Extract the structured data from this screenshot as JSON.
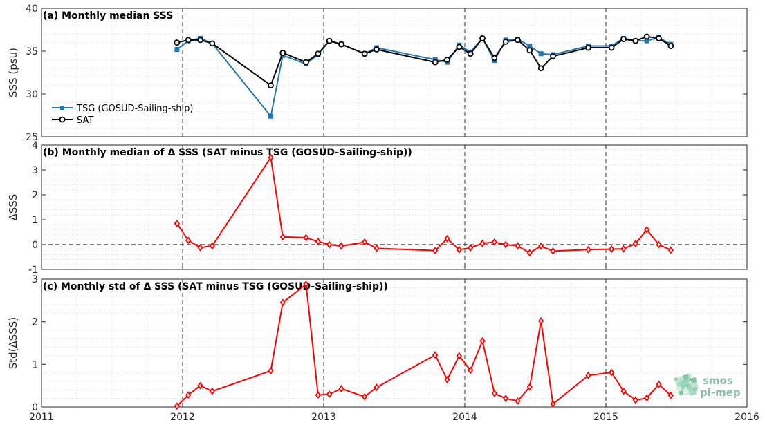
{
  "colors": {
    "tsg": "#1f77b4",
    "sat": "#000000",
    "delta": "#ff0000",
    "grid_minor": "#d9d9d9",
    "zero_line": "#000000"
  },
  "x_axis": {
    "range": [
      2011,
      2016
    ],
    "major_ticks": [
      2011,
      2012,
      2013,
      2014,
      2015,
      2016
    ],
    "tick_labels": [
      "2011",
      "2012",
      "2013",
      "2014",
      "2015",
      "2016"
    ],
    "year_dashes": [
      2012,
      2013,
      2014,
      2015
    ]
  },
  "logo": {
    "line1": "smos",
    "line2": "pi-mep"
  },
  "chart_data": [
    {
      "type": "line",
      "id": "a",
      "title": "(a) Monthly median SSS",
      "ylabel": "SSS (psu)",
      "ylim": [
        25,
        40
      ],
      "yticks": [
        25,
        30,
        35,
        40
      ],
      "grid": "minor-dotted",
      "legend_position": "left",
      "series": [
        {
          "name": "TSG (GOSUD-Sailing-ship)",
          "marker": "square",
          "x": [
            2011.96,
            2012.04,
            2012.125,
            2012.21,
            2012.625,
            2012.71,
            2012.875,
            2012.96,
            2013.04,
            2013.125,
            2013.29,
            2013.375,
            2013.79,
            2013.875,
            2013.96,
            2014.04,
            2014.125,
            2014.21,
            2014.29,
            2014.375,
            2014.46,
            2014.54,
            2014.625,
            2014.875,
            2015.04,
            2015.125,
            2015.21,
            2015.29,
            2015.375,
            2015.46
          ],
          "y": [
            35.2,
            36.2,
            36.5,
            35.9,
            27.4,
            34.5,
            33.5,
            34.6,
            36.2,
            35.8,
            34.7,
            35.4,
            34.0,
            33.7,
            35.7,
            34.9,
            36.5,
            33.9,
            36.3,
            36.4,
            35.6,
            34.7,
            34.6,
            35.6,
            35.6,
            36.5,
            36.2,
            36.2,
            36.6,
            35.8
          ]
        },
        {
          "name": "SAT",
          "marker": "circle",
          "x": [
            2011.96,
            2012.04,
            2012.125,
            2012.21,
            2012.625,
            2012.71,
            2012.875,
            2012.96,
            2013.04,
            2013.125,
            2013.29,
            2013.375,
            2013.79,
            2013.875,
            2013.96,
            2014.04,
            2014.125,
            2014.21,
            2014.29,
            2014.375,
            2014.46,
            2014.54,
            2014.625,
            2014.875,
            2015.04,
            2015.125,
            2015.21,
            2015.29,
            2015.375,
            2015.46
          ],
          "y": [
            36.0,
            36.3,
            36.3,
            35.9,
            31.0,
            34.8,
            33.7,
            34.7,
            36.2,
            35.8,
            34.7,
            35.2,
            33.7,
            34.0,
            35.5,
            34.7,
            36.5,
            34.2,
            36.1,
            36.3,
            35.1,
            33.0,
            34.4,
            35.4,
            35.4,
            36.4,
            36.2,
            36.7,
            36.5,
            35.6
          ]
        }
      ]
    },
    {
      "type": "line",
      "id": "b",
      "title": "(b) Monthly median of Δ SSS (SAT minus TSG (GOSUD-Sailing-ship))",
      "ylabel": "ΔSSS",
      "ylim": [
        -1,
        4
      ],
      "yticks": [
        -1,
        0,
        1,
        2,
        3,
        4
      ],
      "zero_line": true,
      "grid": "minor-dotted",
      "series": [
        {
          "marker": "diamond",
          "x": [
            2011.96,
            2012.04,
            2012.125,
            2012.21,
            2012.625,
            2012.71,
            2012.875,
            2012.96,
            2013.04,
            2013.125,
            2013.29,
            2013.375,
            2013.79,
            2013.875,
            2013.96,
            2014.04,
            2014.125,
            2014.21,
            2014.29,
            2014.375,
            2014.46,
            2014.54,
            2014.625,
            2014.875,
            2015.04,
            2015.125,
            2015.21,
            2015.29,
            2015.375,
            2015.46
          ],
          "y": [
            0.85,
            0.17,
            -0.12,
            -0.05,
            3.5,
            0.31,
            0.28,
            0.12,
            0.0,
            -0.06,
            0.1,
            -0.15,
            -0.24,
            0.24,
            -0.2,
            -0.13,
            0.05,
            0.1,
            0.0,
            -0.05,
            -0.33,
            -0.06,
            -0.26,
            -0.2,
            -0.18,
            -0.17,
            0.04,
            0.6,
            0.0,
            -0.22
          ]
        }
      ]
    },
    {
      "type": "line",
      "id": "c",
      "title": "(c) Monthly std of Δ SSS (SAT minus TSG (GOSUD-Sailing-ship))",
      "ylabel": "Std(ΔSSS)",
      "ylim": [
        0,
        3
      ],
      "yticks": [
        0,
        1,
        2,
        3
      ],
      "grid": "minor-dotted",
      "series": [
        {
          "marker": "diamond",
          "x": [
            2011.96,
            2012.04,
            2012.125,
            2012.21,
            2012.625,
            2012.71,
            2012.875,
            2012.96,
            2013.04,
            2013.125,
            2013.29,
            2013.375,
            2013.79,
            2013.875,
            2013.96,
            2014.04,
            2014.125,
            2014.21,
            2014.29,
            2014.375,
            2014.46,
            2014.54,
            2014.625,
            2014.875,
            2015.04,
            2015.125,
            2015.21,
            2015.29,
            2015.375,
            2015.46
          ],
          "y": [
            0.02,
            0.28,
            0.5,
            0.37,
            0.85,
            2.45,
            2.88,
            0.28,
            0.3,
            0.43,
            0.24,
            0.46,
            1.22,
            0.64,
            1.2,
            0.86,
            1.55,
            0.32,
            0.2,
            0.14,
            0.47,
            2.02,
            0.07,
            0.74,
            0.81,
            0.37,
            0.16,
            0.21,
            0.53,
            0.27
          ]
        }
      ]
    }
  ]
}
